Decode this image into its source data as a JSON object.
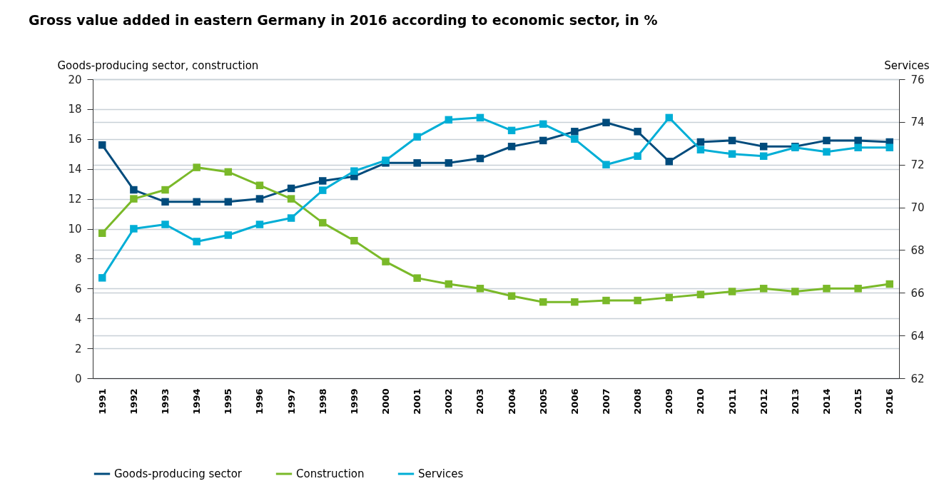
{
  "chart_data": {
    "type": "line",
    "title": "Gross value added in eastern Germany in 2016 according to economic sector, in %",
    "ylabel": "Goods-producing sector, construction",
    "y2label": "Services",
    "categories": [
      "1991",
      "1992",
      "1993",
      "1994",
      "1995",
      "1996",
      "1997",
      "1998",
      "1999",
      "2000",
      "2001",
      "2002",
      "2003",
      "2004",
      "2005",
      "2006",
      "2007",
      "2008",
      "2009",
      "2010",
      "2011",
      "2012",
      "2013",
      "2014",
      "2015",
      "2016"
    ],
    "series": [
      {
        "name": "Goods-producing sector",
        "color": "#004b7c",
        "values": [
          15.6,
          12.6,
          11.8,
          11.8,
          11.8,
          12.0,
          12.7,
          13.2,
          13.5,
          14.4,
          14.4,
          14.4,
          14.7,
          15.5,
          15.9,
          16.5,
          17.1,
          16.5,
          14.5,
          15.8,
          15.9,
          15.5,
          15.5,
          15.9,
          15.9,
          15.8
        ]
      },
      {
        "name": "Construction",
        "color": "#7ab929",
        "values": [
          9.7,
          12.0,
          12.6,
          14.1,
          13.8,
          12.9,
          12.0,
          10.4,
          9.2,
          7.8,
          6.7,
          6.3,
          6.0,
          5.5,
          5.1,
          5.1,
          5.2,
          5.2,
          5.4,
          5.6,
          5.8,
          6.0,
          5.8,
          6.0,
          6.0,
          6.3
        ]
      },
      {
        "name": "Services",
        "color": "#00aed6",
        "axis": "y2",
        "values": [
          66.7,
          69.0,
          69.2,
          68.4,
          68.7,
          69.2,
          69.5,
          70.8,
          71.7,
          72.2,
          73.3,
          74.1,
          74.2,
          73.6,
          73.9,
          73.2,
          72.0,
          72.4,
          74.2,
          72.7,
          72.5,
          72.4,
          72.8,
          72.6,
          72.8,
          72.8
        ]
      }
    ],
    "ylim": [
      0,
      20
    ],
    "yticks": [
      0,
      2,
      4,
      6,
      8,
      10,
      12,
      14,
      16,
      18,
      20
    ],
    "y2lim": [
      62,
      76
    ],
    "y2ticks": [
      62,
      64,
      66,
      68,
      70,
      72,
      74,
      76
    ],
    "grid": "y",
    "legend": "bottom",
    "marker": "square",
    "line_style": "solid"
  }
}
